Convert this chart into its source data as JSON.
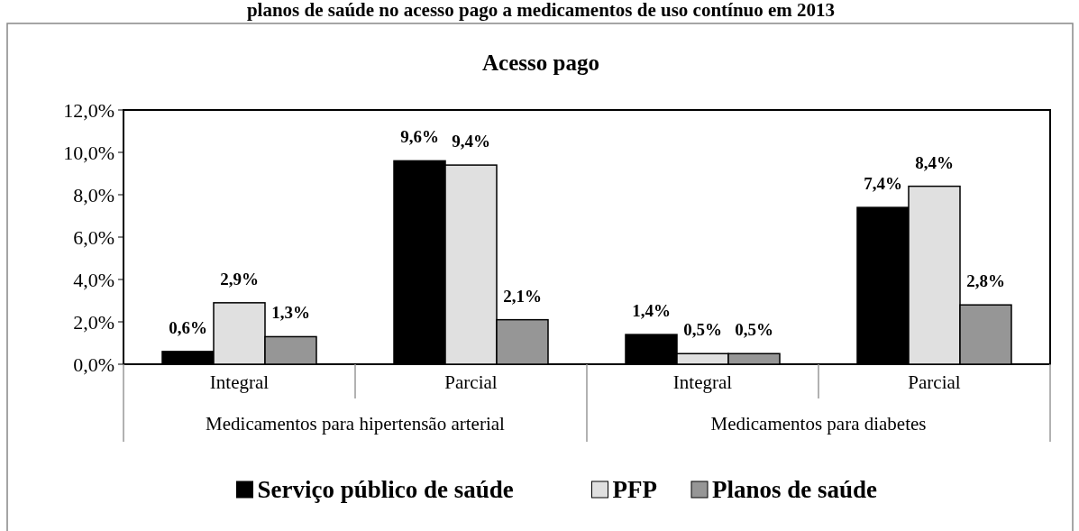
{
  "chart_data": {
    "type": "bar",
    "title": "planos de saúde no acesso pago a medicamentos de uso contínuo em 2013",
    "subtitle": "Acesso pago",
    "categories": [
      "Integral",
      "Parcial",
      "Integral",
      "Parcial"
    ],
    "annotations": [
      "Medicamentos para hipertensão arterial",
      "Medicamentos para diabetes"
    ],
    "series": [
      {
        "name": "Serviço público de saúde",
        "color": "#000000",
        "values": [
          0.6,
          9.6,
          1.4,
          7.4
        ],
        "value_labels": [
          "0,6%",
          "9,6%",
          "1,4%",
          "7,4%"
        ]
      },
      {
        "name": "PFP",
        "color": "#e0e0e0",
        "values": [
          2.9,
          9.4,
          0.5,
          8.4
        ],
        "value_labels": [
          "2,9%",
          "9,4%",
          "0,5%",
          "8,4%"
        ]
      },
      {
        "name": "Planos de saúde",
        "color": "#969696",
        "values": [
          1.3,
          2.1,
          0.5,
          2.8
        ],
        "value_labels": [
          "1,3%",
          "2,1%",
          "0,5%",
          "2,8%"
        ]
      }
    ],
    "ylim": [
      0,
      12
    ],
    "yticks": [
      {
        "value": 0,
        "label": "0,0%"
      },
      {
        "value": 2,
        "label": "2,0%"
      },
      {
        "value": 4,
        "label": "4,0%"
      },
      {
        "value": 6,
        "label": "6,0%"
      },
      {
        "value": 8,
        "label": "8,0%"
      },
      {
        "value": 10,
        "label": "10,0%"
      },
      {
        "value": 12,
        "label": "12,0%"
      }
    ],
    "grid": false,
    "legend": "bottom"
  }
}
